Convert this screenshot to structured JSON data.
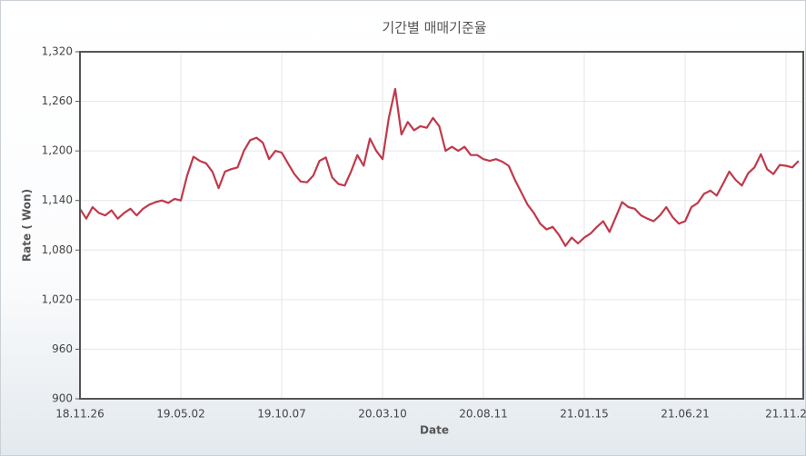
{
  "chart_data": {
    "type": "line",
    "title": "기간별 매매기준율",
    "x_label": "Date",
    "y_label": "Rate ( Won)",
    "categories": [
      "18.11.26",
      null,
      null,
      null,
      null,
      null,
      null,
      null,
      null,
      null,
      null,
      null,
      null,
      null,
      null,
      null,
      "19.05.02",
      null,
      null,
      null,
      null,
      null,
      null,
      null,
      null,
      null,
      null,
      null,
      null,
      null,
      null,
      null,
      "19.10.07",
      null,
      null,
      null,
      null,
      null,
      null,
      null,
      null,
      null,
      null,
      null,
      null,
      null,
      null,
      null,
      "20.03.10",
      null,
      null,
      null,
      null,
      null,
      null,
      null,
      null,
      null,
      null,
      null,
      null,
      null,
      null,
      null,
      "20.08.11",
      null,
      null,
      null,
      null,
      null,
      null,
      null,
      null,
      null,
      null,
      null,
      null,
      null,
      null,
      null,
      "21.01.15",
      null,
      null,
      null,
      null,
      null,
      null,
      null,
      null,
      null,
      null,
      null,
      null,
      null,
      null,
      null,
      "21.06.21",
      null,
      null,
      null,
      null,
      null,
      null,
      null,
      null,
      null,
      null,
      null,
      null,
      null,
      null,
      null,
      "21.11.2",
      null,
      null
    ],
    "values": [
      1130,
      1118,
      1132,
      1125,
      1122,
      1128,
      1118,
      1125,
      1130,
      1122,
      1130,
      1135,
      1138,
      1140,
      1137,
      1142,
      1140,
      1170,
      1193,
      1188,
      1185,
      1175,
      1155,
      1175,
      1178,
      1180,
      1200,
      1213,
      1216,
      1210,
      1190,
      1200,
      1198,
      1185,
      1172,
      1163,
      1162,
      1170,
      1188,
      1192,
      1168,
      1160,
      1158,
      1175,
      1195,
      1182,
      1215,
      1200,
      1190,
      1240,
      1275,
      1220,
      1235,
      1225,
      1230,
      1228,
      1240,
      1230,
      1200,
      1205,
      1200,
      1205,
      1195,
      1195,
      1190,
      1188,
      1190,
      1187,
      1182,
      1165,
      1150,
      1135,
      1125,
      1112,
      1105,
      1108,
      1098,
      1085,
      1095,
      1088,
      1095,
      1100,
      1108,
      1115,
      1102,
      1120,
      1138,
      1132,
      1130,
      1122,
      1118,
      1115,
      1122,
      1132,
      1120,
      1112,
      1115,
      1132,
      1137,
      1148,
      1152,
      1146,
      1160,
      1175,
      1165,
      1158,
      1173,
      1180,
      1196,
      1178,
      1172,
      1183,
      1182,
      1180,
      1188
    ],
    "color": "#c0394b",
    "ylim": [
      900,
      1320
    ],
    "yticks": [
      900,
      960,
      {
        "value": 1020,
        "label": "1,020"
      },
      {
        "value": 1080,
        "label": "1,080"
      },
      {
        "value": 1140,
        "label": "1,140"
      },
      {
        "value": 1200,
        "label": "1,200"
      },
      {
        "value": 1260,
        "label": "1,260"
      },
      {
        "value": 1320,
        "label": "1,320"
      }
    ],
    "grid": true
  }
}
